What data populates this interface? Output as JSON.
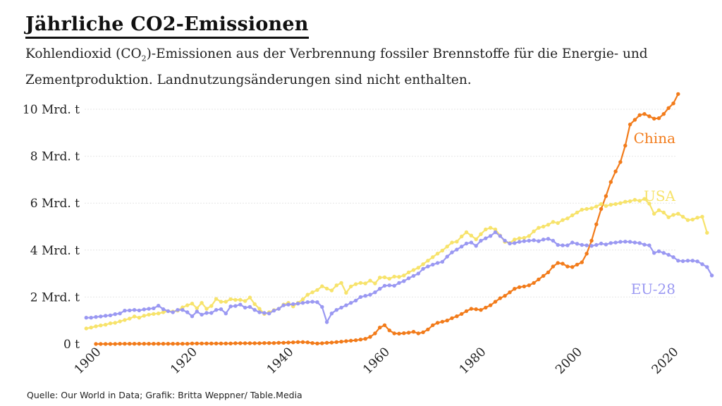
{
  "title": "Jährliche CO2-Emissionen",
  "subtitle": {
    "before": "Kohlendioxid (CO",
    "sub": "2",
    "after": ")-Emissionen aus der Verbrennung fossiler Brennstoffe für die Energie- und Zementproduktion. Landnutzungsänderungen sind nicht enthalten."
  },
  "source": "Quelle: Our World in Data; Grafik: Britta Weppner/ Table.Media",
  "chart_data": {
    "type": "line",
    "title": "Jährliche CO2-Emissionen",
    "xlabel": "",
    "ylabel": "",
    "xlim": [
      1900,
      2020
    ],
    "ylim": [
      0,
      10
    ],
    "grid": true,
    "x_ticks": [
      1900,
      1920,
      1940,
      1960,
      1980,
      2000,
      2020
    ],
    "y_ticks": [
      {
        "value": 0,
        "label": "0 t"
      },
      {
        "value": 2,
        "label": "2 Mrd. t"
      },
      {
        "value": 4,
        "label": "4 Mrd. t"
      },
      {
        "value": 6,
        "label": "6 Mrd. t"
      },
      {
        "value": 8,
        "label": "8 Mrd. t"
      },
      {
        "value": 10,
        "label": "10 Mrd. t"
      }
    ],
    "series": [
      {
        "name": "USA",
        "color": "#f7e36b",
        "start": 1898,
        "values": [
          0.66,
          0.7,
          0.75,
          0.79,
          0.82,
          0.88,
          0.9,
          0.96,
          1.02,
          1.08,
          1.17,
          1.12,
          1.2,
          1.25,
          1.28,
          1.3,
          1.35,
          1.4,
          1.38,
          1.42,
          1.56,
          1.65,
          1.72,
          1.52,
          1.75,
          1.5,
          1.62,
          1.92,
          1.8,
          1.8,
          1.91,
          1.88,
          1.88,
          1.83,
          1.98,
          1.7,
          1.5,
          1.28,
          1.35,
          1.44,
          1.5,
          1.68,
          1.75,
          1.6,
          1.75,
          1.9,
          2.1,
          2.2,
          2.3,
          2.46,
          2.36,
          2.28,
          2.5,
          2.6,
          2.18,
          2.45,
          2.55,
          2.6,
          2.58,
          2.7,
          2.58,
          2.83,
          2.84,
          2.78,
          2.87,
          2.86,
          2.92,
          3.05,
          3.15,
          3.25,
          3.4,
          3.55,
          3.7,
          3.85,
          3.98,
          4.15,
          4.32,
          4.36,
          4.58,
          4.76,
          4.62,
          4.46,
          4.68,
          4.88,
          4.95,
          4.88,
          4.62,
          4.35,
          4.3,
          4.45,
          4.5,
          4.52,
          4.6,
          4.8,
          4.95,
          5.0,
          5.08,
          5.2,
          5.15,
          5.28,
          5.35,
          5.48,
          5.6,
          5.72,
          5.75,
          5.78,
          5.86,
          5.96,
          5.88,
          5.93,
          5.96,
          6.0,
          6.06,
          6.08,
          6.14,
          6.1,
          6.18,
          5.98,
          5.55,
          5.7,
          5.6,
          5.4,
          5.5,
          5.55,
          5.42,
          5.28,
          5.3,
          5.38,
          5.42,
          4.74
        ]
      },
      {
        "name": "EU-28",
        "color": "#9a98f2",
        "start": 1898,
        "values": [
          1.12,
          1.12,
          1.15,
          1.17,
          1.2,
          1.22,
          1.27,
          1.3,
          1.42,
          1.43,
          1.45,
          1.43,
          1.47,
          1.5,
          1.52,
          1.63,
          1.48,
          1.4,
          1.35,
          1.45,
          1.45,
          1.35,
          1.18,
          1.38,
          1.25,
          1.32,
          1.32,
          1.45,
          1.48,
          1.3,
          1.6,
          1.62,
          1.68,
          1.55,
          1.58,
          1.45,
          1.35,
          1.32,
          1.3,
          1.42,
          1.5,
          1.65,
          1.68,
          1.7,
          1.72,
          1.75,
          1.78,
          1.8,
          1.78,
          1.58,
          0.93,
          1.3,
          1.45,
          1.55,
          1.65,
          1.75,
          1.85,
          2.0,
          2.05,
          2.1,
          2.2,
          2.35,
          2.48,
          2.5,
          2.48,
          2.6,
          2.68,
          2.8,
          2.9,
          3.0,
          3.2,
          3.3,
          3.38,
          3.45,
          3.5,
          3.72,
          3.9,
          4.02,
          4.15,
          4.28,
          4.32,
          4.18,
          4.4,
          4.5,
          4.6,
          4.76,
          4.6,
          4.4,
          4.28,
          4.3,
          4.35,
          4.38,
          4.4,
          4.42,
          4.38,
          4.45,
          4.48,
          4.4,
          4.22,
          4.2,
          4.2,
          4.32,
          4.27,
          4.22,
          4.2,
          4.18,
          4.22,
          4.28,
          4.24,
          4.3,
          4.32,
          4.35,
          4.36,
          4.35,
          4.32,
          4.3,
          4.23,
          4.2,
          3.88,
          3.95,
          3.88,
          3.8,
          3.7,
          3.55,
          3.53,
          3.55,
          3.55,
          3.52,
          3.4,
          3.28,
          2.92
        ]
      },
      {
        "name": "China",
        "color": "#f27b1a",
        "start": 1900,
        "values": [
          0.0,
          0.0,
          0.0,
          0.0,
          0.0,
          0.01,
          0.01,
          0.01,
          0.01,
          0.01,
          0.01,
          0.01,
          0.01,
          0.01,
          0.01,
          0.01,
          0.01,
          0.01,
          0.01,
          0.01,
          0.02,
          0.02,
          0.02,
          0.02,
          0.02,
          0.02,
          0.02,
          0.02,
          0.02,
          0.03,
          0.03,
          0.03,
          0.03,
          0.03,
          0.03,
          0.04,
          0.04,
          0.04,
          0.05,
          0.05,
          0.06,
          0.07,
          0.08,
          0.08,
          0.07,
          0.04,
          0.02,
          0.03,
          0.05,
          0.06,
          0.08,
          0.1,
          0.12,
          0.14,
          0.16,
          0.19,
          0.22,
          0.3,
          0.45,
          0.7,
          0.8,
          0.58,
          0.45,
          0.44,
          0.46,
          0.48,
          0.52,
          0.45,
          0.5,
          0.62,
          0.8,
          0.9,
          0.95,
          1.0,
          1.1,
          1.18,
          1.28,
          1.4,
          1.5,
          1.48,
          1.45,
          1.55,
          1.65,
          1.8,
          1.95,
          2.05,
          2.2,
          2.35,
          2.42,
          2.45,
          2.5,
          2.6,
          2.75,
          2.9,
          3.05,
          3.3,
          3.45,
          3.42,
          3.3,
          3.28,
          3.38,
          3.48,
          3.85,
          4.4,
          5.1,
          5.75,
          6.3,
          6.9,
          7.35,
          7.75,
          8.45,
          9.35,
          9.55,
          9.75,
          9.8,
          9.7,
          9.6,
          9.62,
          9.8,
          10.05,
          10.25,
          10.65
        ]
      }
    ]
  }
}
